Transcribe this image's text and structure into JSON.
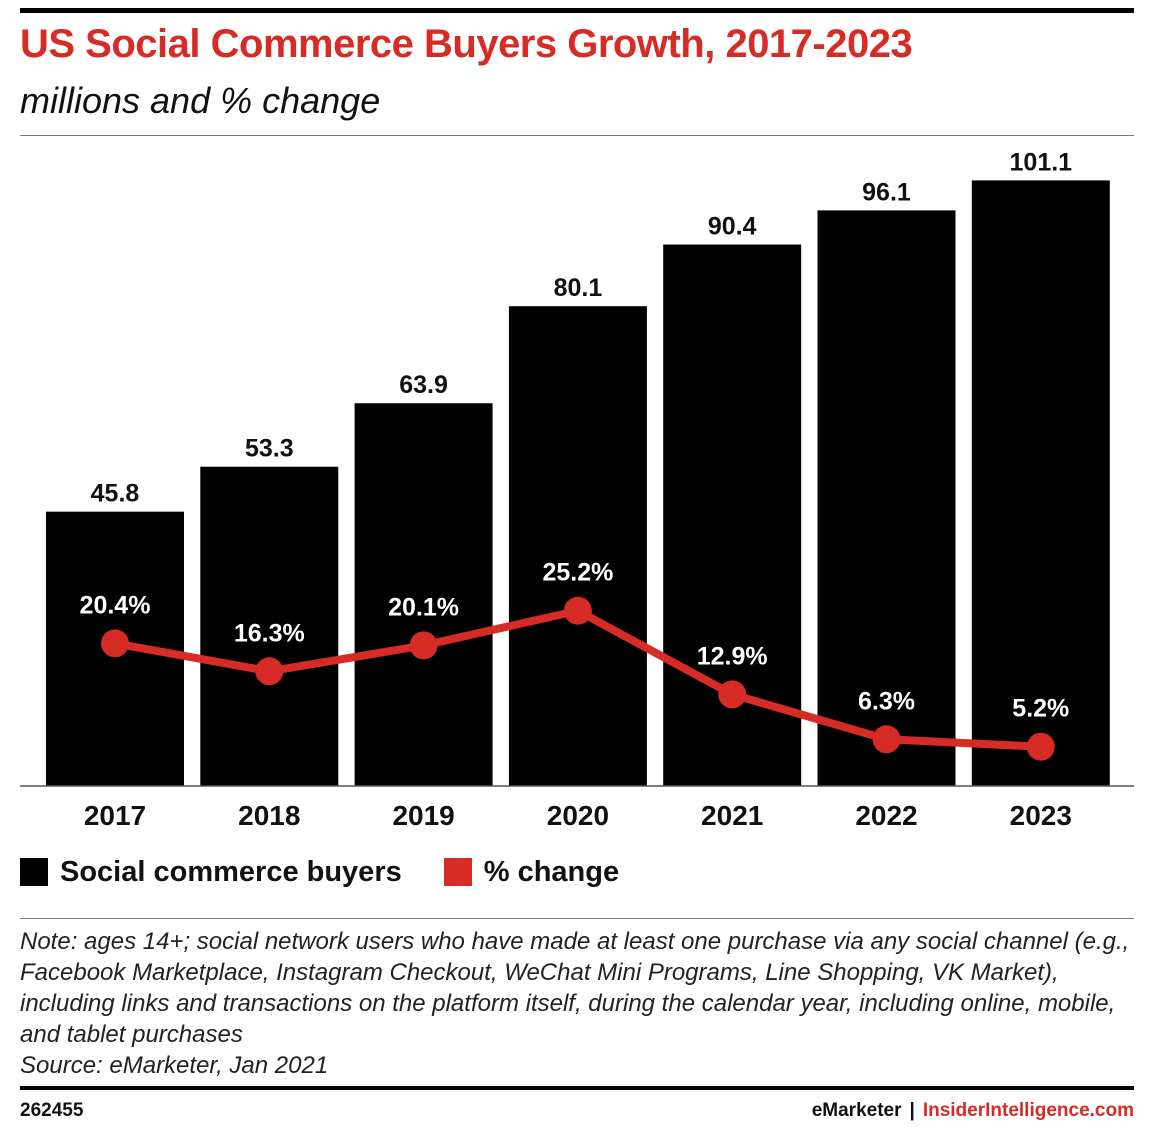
{
  "header": {
    "title": "US Social Commerce Buyers Growth, 2017-2023",
    "subtitle": "millions and % change"
  },
  "chart_data": {
    "type": "bar",
    "categories": [
      "2017",
      "2018",
      "2019",
      "2020",
      "2021",
      "2022",
      "2023"
    ],
    "series": [
      {
        "name": "Social commerce buyers",
        "type": "bar",
        "values": [
          45.8,
          53.3,
          63.9,
          80.1,
          90.4,
          96.1,
          101.1
        ],
        "labels": [
          "45.8",
          "53.3",
          "63.9",
          "80.1",
          "90.4",
          "96.1",
          "101.1"
        ],
        "color": "#000000"
      },
      {
        "name": "% change",
        "type": "line",
        "values": [
          20.4,
          16.3,
          20.1,
          25.2,
          12.9,
          6.3,
          5.2
        ],
        "labels": [
          "20.4%",
          "16.3%",
          "20.1%",
          "25.2%",
          "12.9%",
          "6.3%",
          "5.2%"
        ],
        "color": "#d72b26"
      }
    ],
    "ylim": [
      0,
      110
    ],
    "pct_ylim": [
      -4,
      55
    ],
    "grid": false,
    "legend_position": "bottom-left"
  },
  "legend": {
    "items": [
      {
        "label": "Social commerce buyers",
        "color": "#000000"
      },
      {
        "label": "% change",
        "color": "#d72b26"
      }
    ]
  },
  "note": {
    "text": "Note: ages 14+; social network users who have made at least one purchase via any social channel (e.g., Facebook Marketplace, Instagram Checkout, WeChat Mini Programs, Line Shopping, VK Market), including links and transactions on the platform itself, during the calendar year, including online, mobile, and tablet purchases",
    "source": "Source: eMarketer, Jan 2021"
  },
  "footer": {
    "chart_id": "262455",
    "brand_1": "eMarketer",
    "separator": "|",
    "brand_2": "InsiderIntelligence.com"
  }
}
